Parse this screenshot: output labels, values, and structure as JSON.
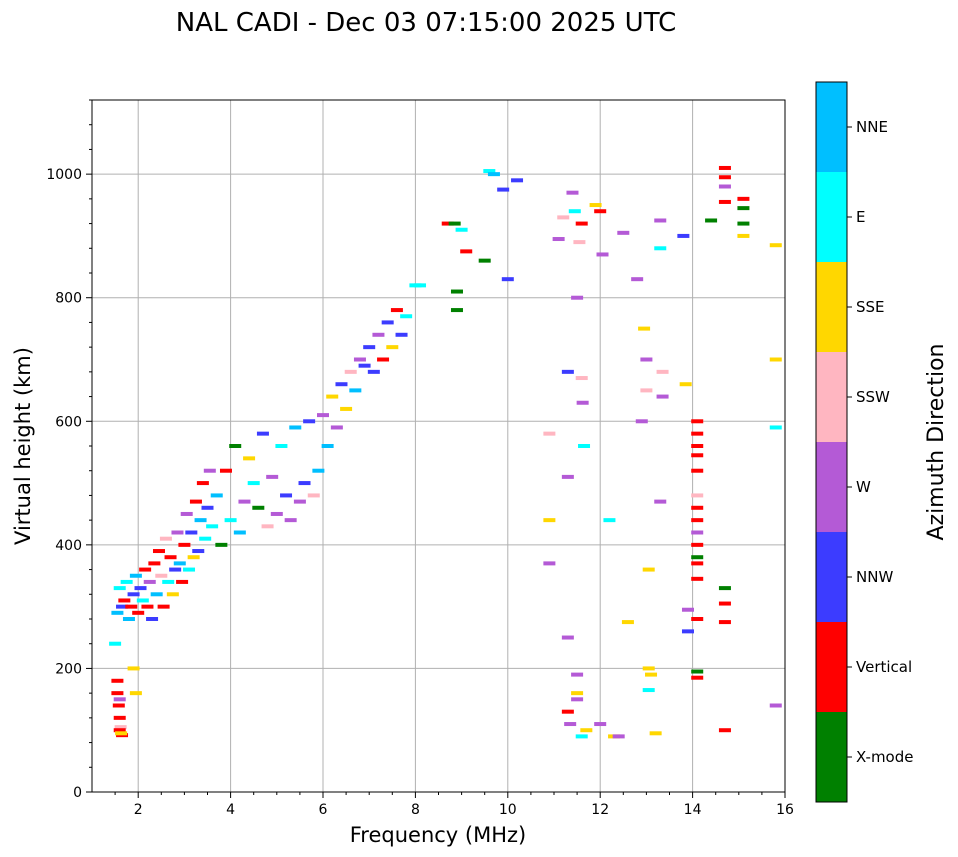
{
  "chart_data": {
    "type": "scatter",
    "title": "NAL CADI - Dec 03 07:15:00 2025 UTC",
    "xlabel": "Frequency (MHz)",
    "ylabel": "Virtual height (km)",
    "xlim": [
      1,
      16
    ],
    "ylim": [
      0,
      1120
    ],
    "xticks": [
      2,
      4,
      6,
      8,
      10,
      12,
      14,
      16
    ],
    "yticks": [
      0,
      200,
      400,
      600,
      800,
      1000
    ],
    "grid": true,
    "colorbar": {
      "title": "Azimuth Direction",
      "categories": [
        {
          "name": "X-mode",
          "color": "#008000"
        },
        {
          "name": "Vertical",
          "color": "#ff0000"
        },
        {
          "name": "NNW",
          "color": "#3c3cff"
        },
        {
          "name": "W",
          "color": "#b45ad6"
        },
        {
          "name": "SSW",
          "color": "#ffb6c1"
        },
        {
          "name": "SSE",
          "color": "#ffd700"
        },
        {
          "name": "E",
          "color": "#00ffff"
        },
        {
          "name": "NNE",
          "color": "#00bfff"
        }
      ]
    },
    "points": [
      [
        1.55,
        160,
        1
      ],
      [
        1.58,
        140,
        1
      ],
      [
        1.6,
        120,
        1
      ],
      [
        1.62,
        105,
        4
      ],
      [
        1.65,
        92,
        1
      ],
      [
        1.6,
        150,
        3
      ],
      [
        1.55,
        180,
        1
      ],
      [
        1.6,
        100,
        1
      ],
      [
        1.63,
        95,
        5
      ],
      [
        1.9,
        200,
        5
      ],
      [
        1.95,
        160,
        5
      ],
      [
        1.5,
        240,
        6
      ],
      [
        1.55,
        290,
        7
      ],
      [
        1.6,
        330,
        6
      ],
      [
        1.65,
        300,
        2
      ],
      [
        1.7,
        310,
        1
      ],
      [
        1.75,
        340,
        6
      ],
      [
        1.8,
        280,
        7
      ],
      [
        1.85,
        300,
        1
      ],
      [
        1.9,
        320,
        2
      ],
      [
        1.95,
        350,
        7
      ],
      [
        2.0,
        290,
        1
      ],
      [
        2.05,
        330,
        2
      ],
      [
        2.1,
        310,
        6
      ],
      [
        2.15,
        360,
        1
      ],
      [
        2.2,
        300,
        1
      ],
      [
        2.25,
        340,
        3
      ],
      [
        2.3,
        280,
        2
      ],
      [
        2.35,
        370,
        1
      ],
      [
        2.4,
        320,
        7
      ],
      [
        2.45,
        390,
        1
      ],
      [
        2.5,
        350,
        4
      ],
      [
        2.55,
        300,
        1
      ],
      [
        2.6,
        410,
        4
      ],
      [
        2.65,
        340,
        6
      ],
      [
        2.7,
        380,
        1
      ],
      [
        2.75,
        320,
        5
      ],
      [
        2.8,
        360,
        2
      ],
      [
        2.85,
        420,
        3
      ],
      [
        2.9,
        370,
        7
      ],
      [
        2.95,
        340,
        1
      ],
      [
        3.0,
        400,
        1
      ],
      [
        3.05,
        450,
        3
      ],
      [
        3.1,
        360,
        6
      ],
      [
        3.15,
        420,
        2
      ],
      [
        3.2,
        380,
        5
      ],
      [
        3.25,
        470,
        1
      ],
      [
        3.3,
        390,
        2
      ],
      [
        3.35,
        440,
        7
      ],
      [
        3.4,
        500,
        1
      ],
      [
        3.45,
        410,
        6
      ],
      [
        3.5,
        460,
        2
      ],
      [
        3.55,
        520,
        3
      ],
      [
        3.6,
        430,
        6
      ],
      [
        3.7,
        480,
        7
      ],
      [
        3.8,
        400,
        0
      ],
      [
        3.9,
        520,
        1
      ],
      [
        4.0,
        440,
        6
      ],
      [
        4.1,
        560,
        0
      ],
      [
        4.2,
        420,
        7
      ],
      [
        4.3,
        470,
        3
      ],
      [
        4.4,
        540,
        5
      ],
      [
        4.5,
        500,
        6
      ],
      [
        4.6,
        460,
        0
      ],
      [
        4.7,
        580,
        2
      ],
      [
        4.8,
        430,
        4
      ],
      [
        4.9,
        510,
        3
      ],
      [
        5.0,
        450,
        3
      ],
      [
        5.1,
        560,
        6
      ],
      [
        5.2,
        480,
        2
      ],
      [
        5.3,
        440,
        3
      ],
      [
        5.4,
        590,
        7
      ],
      [
        5.5,
        470,
        3
      ],
      [
        5.6,
        500,
        2
      ],
      [
        5.7,
        600,
        2
      ],
      [
        5.8,
        480,
        4
      ],
      [
        5.9,
        520,
        7
      ],
      [
        6.0,
        610,
        3
      ],
      [
        6.1,
        560,
        7
      ],
      [
        6.2,
        640,
        5
      ],
      [
        6.3,
        590,
        3
      ],
      [
        6.4,
        660,
        2
      ],
      [
        6.5,
        620,
        5
      ],
      [
        6.6,
        680,
        4
      ],
      [
        6.7,
        650,
        7
      ],
      [
        6.8,
        700,
        3
      ],
      [
        6.9,
        690,
        2
      ],
      [
        7.0,
        720,
        2
      ],
      [
        7.1,
        680,
        2
      ],
      [
        7.2,
        740,
        3
      ],
      [
        7.3,
        700,
        1
      ],
      [
        7.4,
        760,
        2
      ],
      [
        7.5,
        720,
        5
      ],
      [
        7.6,
        780,
        1
      ],
      [
        7.7,
        740,
        2
      ],
      [
        7.8,
        770,
        6
      ],
      [
        8.0,
        820,
        6
      ],
      [
        8.1,
        820,
        6
      ],
      [
        8.7,
        920,
        1
      ],
      [
        8.85,
        920,
        0
      ],
      [
        8.9,
        810,
        0
      ],
      [
        8.9,
        780,
        0
      ],
      [
        9.0,
        910,
        6
      ],
      [
        9.1,
        875,
        1
      ],
      [
        9.5,
        860,
        0
      ],
      [
        9.6,
        1005,
        6
      ],
      [
        9.7,
        1000,
        7
      ],
      [
        9.9,
        975,
        2
      ],
      [
        10.0,
        830,
        2
      ],
      [
        10.2,
        990,
        2
      ],
      [
        10.9,
        580,
        4
      ],
      [
        10.9,
        440,
        5
      ],
      [
        10.9,
        370,
        3
      ],
      [
        11.1,
        895,
        3
      ],
      [
        11.2,
        930,
        4
      ],
      [
        11.3,
        680,
        2
      ],
      [
        11.3,
        510,
        3
      ],
      [
        11.3,
        250,
        3
      ],
      [
        11.3,
        130,
        1
      ],
      [
        11.35,
        110,
        3
      ],
      [
        11.4,
        970,
        3
      ],
      [
        11.45,
        940,
        6
      ],
      [
        11.5,
        800,
        3
      ],
      [
        11.55,
        890,
        4
      ],
      [
        11.6,
        920,
        1
      ],
      [
        11.6,
        670,
        4
      ],
      [
        11.62,
        630,
        3
      ],
      [
        11.65,
        560,
        6
      ],
      [
        11.5,
        190,
        3
      ],
      [
        11.5,
        160,
        5
      ],
      [
        11.5,
        150,
        3
      ],
      [
        11.6,
        90,
        6
      ],
      [
        11.7,
        100,
        5
      ],
      [
        11.9,
        950,
        5
      ],
      [
        12.0,
        940,
        1
      ],
      [
        12.05,
        870,
        3
      ],
      [
        12.0,
        110,
        3
      ],
      [
        12.2,
        440,
        6
      ],
      [
        12.3,
        90,
        5
      ],
      [
        12.4,
        90,
        3
      ],
      [
        12.5,
        905,
        3
      ],
      [
        12.6,
        275,
        5
      ],
      [
        12.8,
        830,
        3
      ],
      [
        12.9,
        600,
        3
      ],
      [
        12.95,
        750,
        5
      ],
      [
        13.0,
        700,
        3
      ],
      [
        13.0,
        650,
        4
      ],
      [
        13.05,
        360,
        5
      ],
      [
        13.05,
        200,
        5
      ],
      [
        13.05,
        165,
        6
      ],
      [
        13.1,
        190,
        5
      ],
      [
        13.2,
        95,
        5
      ],
      [
        13.3,
        925,
        3
      ],
      [
        13.3,
        880,
        6
      ],
      [
        13.3,
        470,
        3
      ],
      [
        13.35,
        640,
        3
      ],
      [
        13.35,
        680,
        4
      ],
      [
        13.8,
        900,
        2
      ],
      [
        13.85,
        660,
        5
      ],
      [
        13.9,
        260,
        2
      ],
      [
        13.9,
        295,
        3
      ],
      [
        14.1,
        600,
        1
      ],
      [
        14.1,
        580,
        1
      ],
      [
        14.1,
        560,
        1
      ],
      [
        14.1,
        545,
        1
      ],
      [
        14.1,
        520,
        1
      ],
      [
        14.1,
        480,
        4
      ],
      [
        14.1,
        460,
        1
      ],
      [
        14.1,
        440,
        1
      ],
      [
        14.1,
        420,
        3
      ],
      [
        14.1,
        400,
        1
      ],
      [
        14.1,
        380,
        0
      ],
      [
        14.1,
        370,
        1
      ],
      [
        14.1,
        345,
        1
      ],
      [
        14.1,
        280,
        1
      ],
      [
        14.1,
        195,
        0
      ],
      [
        14.1,
        185,
        1
      ],
      [
        14.4,
        925,
        0
      ],
      [
        14.7,
        1010,
        1
      ],
      [
        14.7,
        995,
        1
      ],
      [
        14.7,
        980,
        3
      ],
      [
        14.7,
        955,
        1
      ],
      [
        14.7,
        330,
        0
      ],
      [
        14.7,
        305,
        1
      ],
      [
        14.7,
        275,
        1
      ],
      [
        14.7,
        100,
        1
      ],
      [
        15.1,
        960,
        1
      ],
      [
        15.1,
        945,
        0
      ],
      [
        15.1,
        920,
        0
      ],
      [
        15.1,
        900,
        5
      ],
      [
        15.8,
        885,
        5
      ],
      [
        15.8,
        700,
        5
      ],
      [
        15.8,
        590,
        6
      ],
      [
        15.8,
        140,
        3
      ]
    ]
  }
}
